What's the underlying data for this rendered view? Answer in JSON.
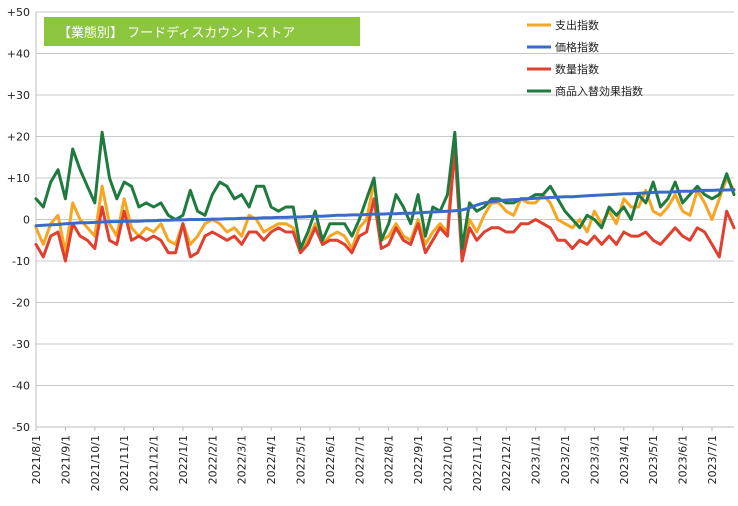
{
  "chart_data": {
    "type": "line",
    "title": "【業態別】 フードディスカウントストア",
    "xlabel": "",
    "ylabel": "",
    "ylim": [
      -50,
      50
    ],
    "y_ticks": [
      {
        "value": 50,
        "label": "+50"
      },
      {
        "value": 40,
        "label": "+40"
      },
      {
        "value": 30,
        "label": "+30"
      },
      {
        "value": 20,
        "label": "+20"
      },
      {
        "value": 10,
        "label": "+10"
      },
      {
        "value": 0,
        "label": "0"
      },
      {
        "value": -10,
        "label": "-10"
      },
      {
        "value": -20,
        "label": "-20"
      },
      {
        "value": -30,
        "label": "-30"
      },
      {
        "value": -40,
        "label": "-40"
      },
      {
        "value": -50,
        "label": "-50"
      }
    ],
    "x_ticks": [
      {
        "index": 0,
        "label": "2021/8/1"
      },
      {
        "index": 4,
        "label": "2021/9/1"
      },
      {
        "index": 8,
        "label": "2021/10/1"
      },
      {
        "index": 12,
        "label": "2021/11/1"
      },
      {
        "index": 16,
        "label": "2021/12/1"
      },
      {
        "index": 20,
        "label": "2022/1/1"
      },
      {
        "index": 24,
        "label": "2022/2/1"
      },
      {
        "index": 28,
        "label": "2022/3/1"
      },
      {
        "index": 32,
        "label": "2022/4/1"
      },
      {
        "index": 36,
        "label": "2022/5/1"
      },
      {
        "index": 40,
        "label": "2022/6/1"
      },
      {
        "index": 44,
        "label": "2022/7/1"
      },
      {
        "index": 48,
        "label": "2022/8/1"
      },
      {
        "index": 52,
        "label": "2022/9/1"
      },
      {
        "index": 56,
        "label": "2022/10/1"
      },
      {
        "index": 60,
        "label": "2022/11/1"
      },
      {
        "index": 64,
        "label": "2022/12/1"
      },
      {
        "index": 68,
        "label": "2023/1/1"
      },
      {
        "index": 72,
        "label": "2023/2/1"
      },
      {
        "index": 76,
        "label": "2023/3/1"
      },
      {
        "index": 80,
        "label": "2023/4/1"
      },
      {
        "index": 84,
        "label": "2023/5/1"
      },
      {
        "index": 88,
        "label": "2023/6/1"
      },
      {
        "index": 92,
        "label": "2023/7/1"
      }
    ],
    "grid": "horizontal",
    "legend_position": "top-right",
    "series": [
      {
        "name": "支出指数",
        "color": "#f5a623",
        "values": [
          -2,
          -6,
          -1,
          1,
          -8,
          4,
          0,
          -2,
          -4,
          8,
          -1,
          -4,
          5,
          -2,
          -4,
          -2,
          -3,
          -1,
          -5,
          -6,
          -1,
          -6,
          -4,
          -1,
          0,
          -1,
          -3,
          -2,
          -4,
          1,
          0,
          -3,
          -2,
          -1,
          -1,
          -2,
          -8,
          -5,
          -1,
          -6,
          -4,
          -3,
          -4,
          -7,
          -2,
          0,
          9,
          -5,
          -4,
          -1,
          -4,
          -5,
          0,
          -6,
          -3,
          -1,
          -3,
          20,
          -9,
          0,
          -3,
          1,
          4,
          4,
          2,
          1,
          5,
          4,
          4,
          6,
          4,
          0,
          -1,
          -2,
          0,
          -3,
          2,
          -1,
          2,
          -1,
          5,
          3,
          3,
          7,
          2,
          1,
          3,
          6,
          2,
          1,
          7,
          4,
          0,
          5,
          10,
          7
        ]
      },
      {
        "name": "価格指数",
        "color": "#3a6bc7",
        "values": [
          -1.5,
          -1.4,
          -1.3,
          -1.2,
          -1.0,
          -0.9,
          -0.8,
          -0.8,
          -0.7,
          -0.6,
          -0.5,
          -0.5,
          -0.4,
          -0.4,
          -0.4,
          -0.3,
          -0.3,
          -0.2,
          -0.2,
          -0.1,
          -0.1,
          0.0,
          0.0,
          0.0,
          0.1,
          0.1,
          0.2,
          0.2,
          0.3,
          0.3,
          0.3,
          0.4,
          0.4,
          0.5,
          0.5,
          0.6,
          0.6,
          0.7,
          0.8,
          0.8,
          0.9,
          1.0,
          1.0,
          1.1,
          1.1,
          1.2,
          1.3,
          1.3,
          1.4,
          1.4,
          1.5,
          1.5,
          1.6,
          1.7,
          1.8,
          1.9,
          2.0,
          2.1,
          2.3,
          2.8,
          3.5,
          4.0,
          4.3,
          4.5,
          4.7,
          4.8,
          4.9,
          5.0,
          5.1,
          5.2,
          5.3,
          5.4,
          5.5,
          5.5,
          5.6,
          5.7,
          5.8,
          5.9,
          6.0,
          6.1,
          6.2,
          6.2,
          6.3,
          6.4,
          6.5,
          6.6,
          6.6,
          6.7,
          6.8,
          6.8,
          6.9,
          7.0,
          7.0,
          7.1,
          7.1,
          7.2
        ]
      },
      {
        "name": "数量指数",
        "color": "#e04030",
        "values": [
          -6,
          -9,
          -4,
          -3,
          -10,
          -1,
          -4,
          -5,
          -7,
          3,
          -5,
          -6,
          2,
          -5,
          -4,
          -5,
          -4,
          -5,
          -8,
          -8,
          -1,
          -9,
          -8,
          -4,
          -3,
          -4,
          -5,
          -4,
          -6,
          -3,
          -3,
          -5,
          -3,
          -2,
          -3,
          -3,
          -8,
          -6,
          -2,
          -6,
          -5,
          -5,
          -6,
          -8,
          -4,
          -3,
          5,
          -7,
          -6,
          -2,
          -5,
          -6,
          -1,
          -8,
          -5,
          -2,
          -4,
          17,
          -10,
          -2,
          -5,
          -3,
          -2,
          -2,
          -3,
          -3,
          -1,
          -1,
          0,
          -1,
          -2,
          -5,
          -5,
          -7,
          -5,
          -6,
          -4,
          -6,
          -4,
          -6,
          -3,
          -4,
          -4,
          -3,
          -5,
          -6,
          -4,
          -2,
          -4,
          -5,
          -2,
          -3,
          -6,
          -9,
          2,
          -2
        ]
      },
      {
        "name": "商品入替効果指数",
        "color": "#1f7a3e",
        "values": [
          5,
          3,
          9,
          12,
          5,
          17,
          12,
          8,
          4,
          21,
          10,
          5,
          9,
          8,
          3,
          4,
          3,
          4,
          1,
          0,
          1,
          7,
          2,
          1,
          6,
          9,
          8,
          5,
          6,
          3,
          8,
          8,
          3,
          2,
          3,
          3,
          -7,
          -3,
          2,
          -5,
          -1,
          -1,
          -1,
          -4,
          0,
          5,
          10,
          -5,
          -1,
          6,
          3,
          -1,
          6,
          -4,
          3,
          2,
          6,
          21,
          -7,
          4,
          2,
          3,
          5,
          5,
          4,
          4,
          5,
          5,
          6,
          6,
          8,
          5,
          2,
          0,
          -2,
          1,
          0,
          -2,
          3,
          1,
          3,
          0,
          6,
          4,
          9,
          3,
          5,
          9,
          4,
          6,
          8,
          6,
          5,
          6,
          11,
          6
        ]
      }
    ]
  }
}
